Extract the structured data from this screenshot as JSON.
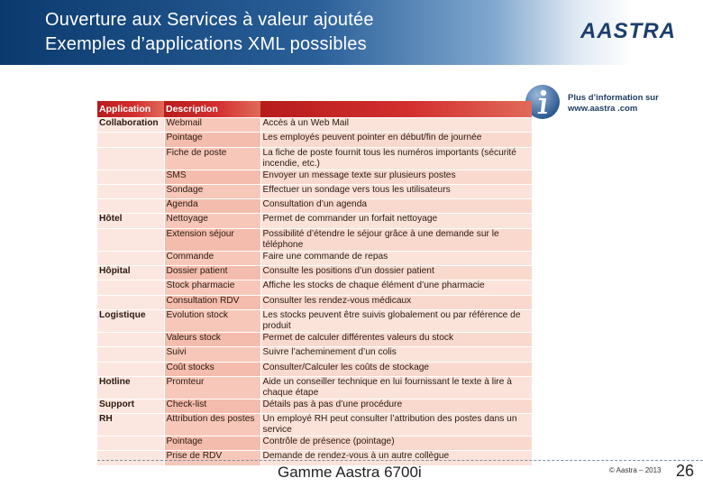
{
  "header": {
    "title_line1": "Ouverture aux Services à valeur ajoutée",
    "title_line2": "Exemples d’applications XML possibles",
    "logo_text": "AASTRA"
  },
  "info": {
    "icon": "info-icon",
    "line1": "Plus d’information sur",
    "line2": "www.aastra .com"
  },
  "table": {
    "headers": [
      "Application",
      "Description",
      ""
    ],
    "rows": [
      {
        "cat": "Collaboration",
        "app": "Webmail",
        "desc": "Accès à un Web Mail"
      },
      {
        "cat": "",
        "app": "Pointage",
        "desc": "Les employés peuvent pointer en début/fin de journée"
      },
      {
        "cat": "",
        "app": "Fiche de poste",
        "desc": "La fiche de poste fournit tous les numéros importants (sécurité incendie, etc.)"
      },
      {
        "cat": "",
        "app": "SMS",
        "desc": "Envoyer un message texte sur plusieurs postes"
      },
      {
        "cat": "",
        "app": "Sondage",
        "desc": "Effectuer un sondage vers tous les utilisateurs"
      },
      {
        "cat": "",
        "app": "Agenda",
        "desc": "Consultation d’un agenda"
      },
      {
        "cat": "Hôtel",
        "app": "Nettoyage",
        "desc": "Permet de commander un forfait nettoyage"
      },
      {
        "cat": "",
        "app": "Extension séjour",
        "desc": "Possibilité d’étendre le séjour grâce à une demande sur le téléphone"
      },
      {
        "cat": "",
        "app": "Commande",
        "desc": "Faire une commande de repas"
      },
      {
        "cat": "Hôpital",
        "app": "Dossier patient",
        "desc": "Consulte les positions d’un dossier patient"
      },
      {
        "cat": "",
        "app": "Stock pharmacie",
        "desc": "Affiche les stocks de chaque élément d’une pharmacie"
      },
      {
        "cat": "",
        "app": "Consultation RDV",
        "desc": "Consulter les rendez-vous médicaux"
      },
      {
        "cat": "Logistique",
        "app": "Evolution stock",
        "desc": "Les stocks peuvent être suivis globalement ou par référence de produit"
      },
      {
        "cat": "",
        "app": "Valeurs stock",
        "desc": "Permet de calculer différentes valeurs du stock"
      },
      {
        "cat": "",
        "app": "Suivi",
        "desc": "Suivre l’acheminement d’un colis"
      },
      {
        "cat": "",
        "app": "Coût stocks",
        "desc": "Consulter/Calculer les coûts de stockage"
      },
      {
        "cat": "Hotline",
        "app": "Promteur",
        "desc": "Aide un conseiller technique en lui fournissant le texte à lire à chaque étape"
      },
      {
        "cat": "Support",
        "app": "Check-list",
        "desc": "Détails pas à pas d’une procédure"
      },
      {
        "cat": "RH",
        "app": "Attribution des postes",
        "desc": "Un employé RH peut consulter l’attribution des postes dans un service"
      },
      {
        "cat": "",
        "app": "Pointage",
        "desc": "Contrôle de présence (pointage)"
      },
      {
        "cat": "",
        "app": "Prise de RDV",
        "desc": "Demande de rendez-vous à un autre collègue"
      }
    ]
  },
  "footer": {
    "product": "Gamme Aastra 6700i",
    "copyright": "© Aastra – 2013",
    "page": "26"
  },
  "colors": {
    "header_blue": "#0b3a6e",
    "table_header_red": "#c62828",
    "row_pink": "#fbe3da"
  }
}
